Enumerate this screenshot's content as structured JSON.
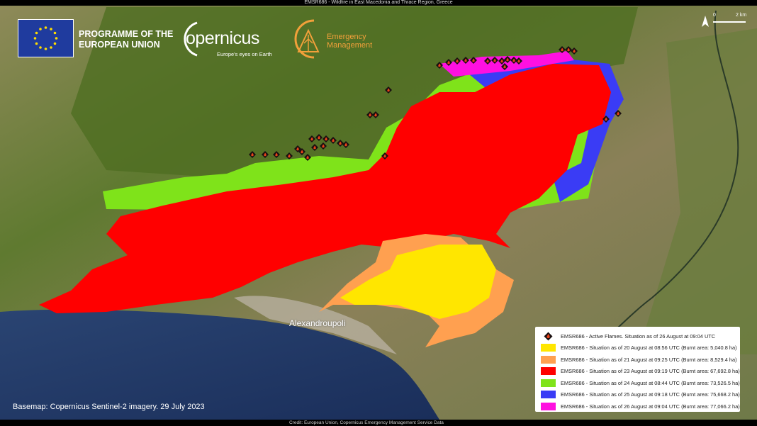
{
  "title": "EMSR686 - Wildfire in East Macedonia and Thrace Region, Greece",
  "logos": {
    "eu": "PROGRAMME OF THE EUROPEAN UNION",
    "eu_line1": "PROGRAMME OF THE",
    "eu_line2": "EUROPEAN UNION",
    "copernicus": "Copernicus",
    "copernicus_word": "opernicus",
    "copernicus_tagline": "Europe's eyes on Earth",
    "ems_line1": "Emergency",
    "ems_line2": "Management"
  },
  "scale_bar": {
    "zero": "0",
    "distance": "2 km",
    "north_icon": "north-arrow-icon"
  },
  "place_labels": {
    "city": "Alexandroupoli"
  },
  "basemap_note": "Basemap: Copernicus Sentinel-2 imagery. 29 July 2023",
  "credit": "Credit: European Union, Copernicus Emergency Management Service Data",
  "colors": {
    "aug20": "#ffe600",
    "aug21": "#ffa050",
    "aug23": "#ff0000",
    "aug24": "#7fe31a",
    "aug25": "#3a3cf5",
    "aug26": "#ff10e0",
    "flame": "#e8431a",
    "sea": "#1f3766",
    "land": "#7a8a48"
  },
  "legend": [
    {
      "icon": "active-flame-icon",
      "label": "EMSR686 - Active Flames. Situation as of 26 August at 09:04 UTC"
    },
    {
      "color_key": "aug20",
      "label": "EMSR686 - Situation as of 20 August at 08:56 UTC (Burnt area: 5,040.8 ha)"
    },
    {
      "color_key": "aug21",
      "label": "EMSR686 - Situation as of 21 August at 09:25 UTC (Burnt area: 8,529.4 ha)"
    },
    {
      "color_key": "aug23",
      "label": "EMSR686 - Situation as of 23 August at 09:19 UTC (Burnt area: 67,692.8 ha)"
    },
    {
      "color_key": "aug24",
      "label": "EMSR686 - Situation as of 24 August at 08:44 UTC (Burnt area: 73,526.5 ha)"
    },
    {
      "color_key": "aug25",
      "label": "EMSR686 - Situation as of 25 August at 09:18 UTC (Burnt area: 75,668.2 ha)"
    },
    {
      "color_key": "aug26",
      "label": "EMSR686 - Situation as of 26 August at 09:04 UTC (Burnt area: 77,066.2 ha)"
    }
  ]
}
